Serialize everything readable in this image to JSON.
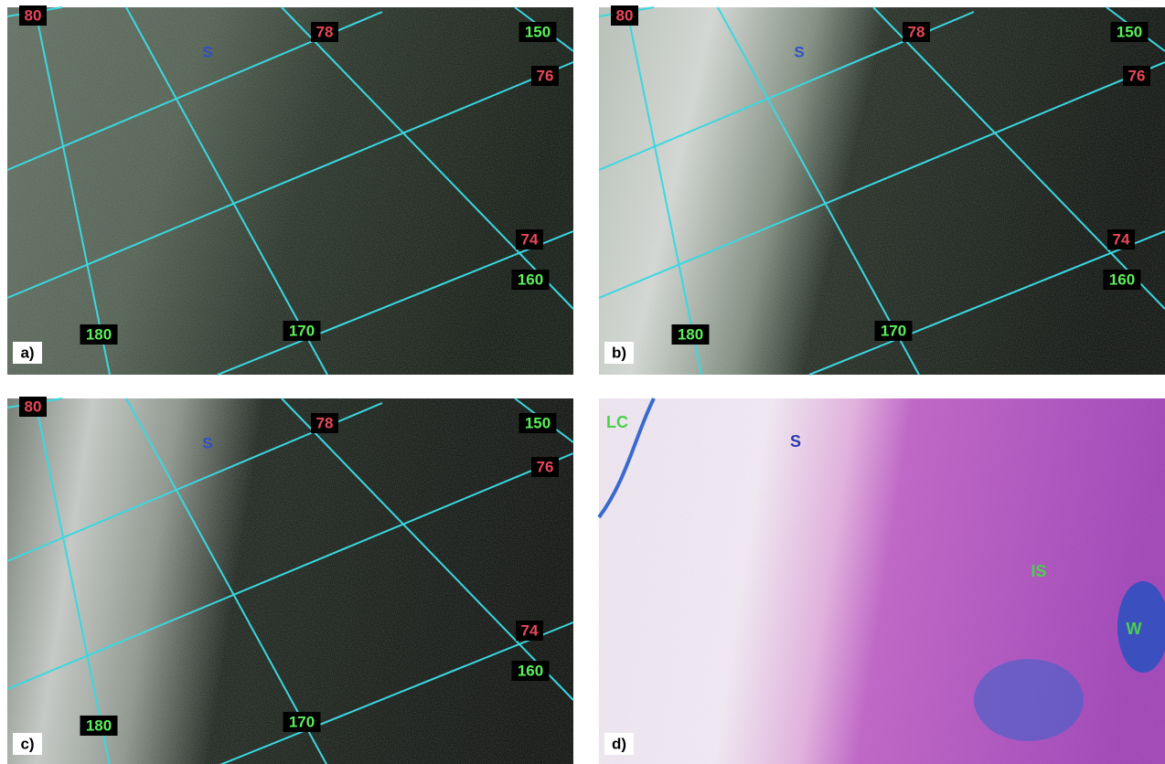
{
  "panels": [
    {
      "label": "a)",
      "tags": [
        "80",
        "78",
        "150",
        "76",
        "74",
        "160",
        "170",
        "180",
        "S"
      ]
    },
    {
      "label": "b)",
      "tags": [
        "80",
        "78",
        "150",
        "76",
        "74",
        "160",
        "170",
        "180",
        "S"
      ]
    },
    {
      "label": "c)",
      "tags": [
        "80",
        "78",
        "150",
        "76",
        "74",
        "160",
        "170",
        "180",
        "S"
      ]
    },
    {
      "label": "d)",
      "tags": [
        "LC",
        "S",
        "IS",
        "W"
      ]
    }
  ]
}
